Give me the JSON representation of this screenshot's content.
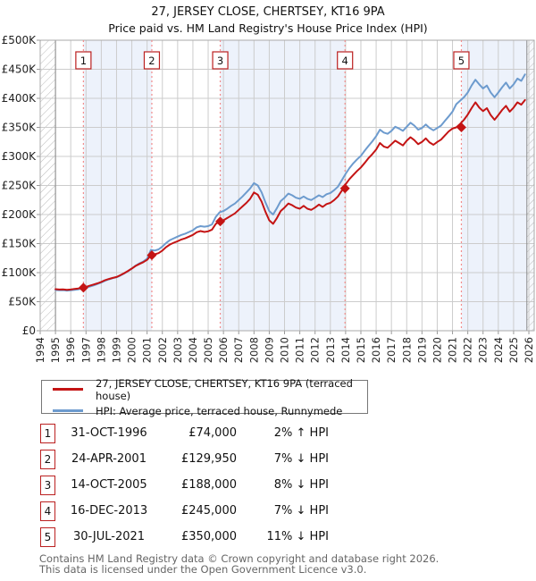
{
  "title": {
    "line1": "27, JERSEY CLOSE, CHERTSEY, KT16 9PA",
    "line2": "Price paid vs. HM Land Registry's House Price Index (HPI)"
  },
  "chart_data": {
    "type": "line",
    "title": "Price paid vs. HM Land Registry's House Price Index (HPI)",
    "unit": "GBP thousands",
    "xlim": [
      1994.0,
      2026.35
    ],
    "ylim": [
      0,
      500
    ],
    "y_tick_labels": [
      "£0",
      "£50K",
      "£100K",
      "£150K",
      "£200K",
      "£250K",
      "£300K",
      "£350K",
      "£400K",
      "£450K",
      "£500K"
    ],
    "x_tick_years": [
      1994,
      1995,
      1996,
      1997,
      1998,
      1999,
      2000,
      2001,
      2002,
      2003,
      2004,
      2005,
      2006,
      2007,
      2008,
      2009,
      2010,
      2011,
      2012,
      2013,
      2014,
      2015,
      2016,
      2017,
      2018,
      2019,
      2020,
      2021,
      2022,
      2023,
      2024,
      2025,
      2026
    ],
    "grid": true,
    "series_start_year": 1995.0,
    "series_step_years": 0.25,
    "series": [
      {
        "name": "27, JERSEY CLOSE, CHERTSEY, KT16 9PA (terraced house)",
        "color": "#c41414",
        "values": [
          71.5,
          71,
          71.2,
          70.5,
          71,
          72,
          72.8,
          74,
          75.5,
          77.5,
          79.5,
          81.5,
          84,
          87,
          89,
          91,
          92.5,
          95.5,
          99,
          103,
          107,
          111.5,
          115,
          118,
          122,
          130,
          131.5,
          133.5,
          138,
          144,
          148.5,
          151.5,
          154,
          157,
          159,
          162,
          165,
          169.5,
          171.5,
          170,
          171,
          174,
          184,
          188,
          190,
          194,
          198,
          202,
          208,
          214,
          220,
          227,
          238,
          234,
          222,
          205,
          190,
          184,
          194,
          206,
          212,
          219,
          216,
          212,
          210,
          215,
          210,
          208,
          212,
          217,
          213,
          218,
          220,
          225,
          231,
          241,
          252,
          261,
          268,
          275,
          281,
          289,
          297,
          304,
          312,
          323,
          317,
          315,
          321,
          327,
          323,
          319,
          327,
          333,
          328,
          321,
          325,
          331,
          324,
          320,
          325,
          329,
          336,
          343,
          348,
          350,
          356,
          363,
          372,
          383,
          393,
          384,
          378,
          383,
          371,
          363,
          371,
          380,
          387,
          377,
          384,
          393,
          389,
          397
        ]
      },
      {
        "name": "HPI: Average price, terraced house, Runnymede",
        "color": "#6d9bce",
        "values": [
          70,
          69.5,
          69.8,
          69,
          69.5,
          70.5,
          71.3,
          72.5,
          74,
          76,
          78,
          80.5,
          83,
          86,
          88.5,
          90.5,
          92,
          95,
          98.5,
          102.5,
          107,
          112,
          116,
          119,
          124,
          139,
          138,
          140,
          145,
          151,
          156,
          159,
          162,
          165,
          167,
          170,
          173,
          178,
          180,
          179,
          180,
          183,
          196,
          204,
          206,
          210,
          215,
          219,
          225,
          231,
          238,
          245,
          254,
          250,
          238,
          221,
          206,
          200,
          211,
          223,
          229,
          236,
          233,
          229,
          227,
          231,
          227,
          225,
          229,
          233,
          230,
          235,
          237,
          242,
          248,
          259,
          270,
          280,
          288,
          295,
          301,
          310,
          318,
          326,
          335,
          346,
          341,
          339,
          344,
          351,
          348,
          344,
          351,
          358,
          353,
          346,
          349,
          355,
          349,
          345,
          349,
          353,
          361,
          369,
          377,
          390,
          396,
          402,
          410,
          422,
          432,
          424,
          417,
          422,
          410,
          402,
          410,
          419,
          427,
          417,
          424,
          434,
          430,
          441
        ]
      }
    ],
    "sale_markers": [
      {
        "n": "1",
        "x": 1996.83,
        "value": 74
      },
      {
        "n": "2",
        "x": 2001.31,
        "value": 129.95
      },
      {
        "n": "3",
        "x": 2005.79,
        "value": 188
      },
      {
        "n": "4",
        "x": 2013.96,
        "value": 245
      },
      {
        "n": "5",
        "x": 2021.58,
        "value": 350
      }
    ],
    "shaded_periods": [
      [
        1996.83,
        2001.31
      ],
      [
        2005.79,
        2013.96
      ],
      [
        2021.58,
        2026.35
      ]
    ],
    "hatched_regions": [
      [
        1994.0,
        1995.0
      ],
      [
        2025.87,
        2026.35
      ]
    ],
    "colors": {
      "band": "#edf2fb",
      "grid": "#cccccc",
      "plot_border": "#aaaaaa",
      "data_edge": "#888888",
      "dashed_sale_line": "#f28c8c",
      "marker_box_border": "#bb2020",
      "hatch": "#bbbbbb"
    }
  },
  "legend": {
    "items": [
      {
        "label": "27, JERSEY CLOSE, CHERTSEY, KT16 9PA (terraced house)",
        "color": "#c41414"
      },
      {
        "label": "HPI: Average price, terraced house, Runnymede",
        "color": "#6d9bce"
      }
    ]
  },
  "sales_table": {
    "rows": [
      {
        "n": "1",
        "date": "31-OCT-1996",
        "price": "£74,000",
        "hpi": "2% ↑ HPI"
      },
      {
        "n": "2",
        "date": "24-APR-2001",
        "price": "£129,950",
        "hpi": "7% ↓ HPI"
      },
      {
        "n": "3",
        "date": "14-OCT-2005",
        "price": "£188,000",
        "hpi": "8% ↓ HPI"
      },
      {
        "n": "4",
        "date": "16-DEC-2013",
        "price": "£245,000",
        "hpi": "7% ↓ HPI"
      },
      {
        "n": "5",
        "date": "30-JUL-2021",
        "price": "£350,000",
        "hpi": "11% ↓ HPI"
      }
    ]
  },
  "footer": {
    "line1": "Contains HM Land Registry data © Crown copyright and database right 2026.",
    "line2": "This data is licensed under the Open Government Licence v3.0."
  }
}
